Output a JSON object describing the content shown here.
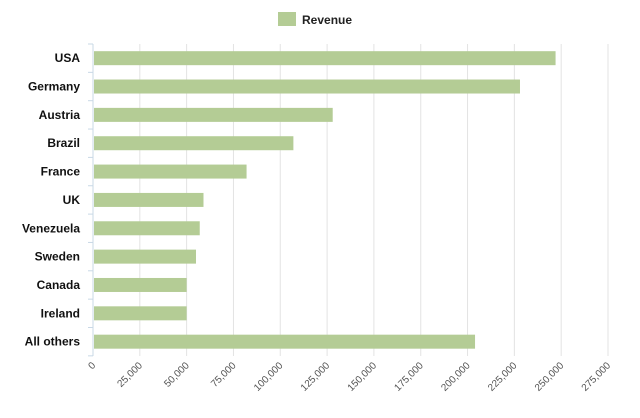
{
  "chart_data": {
    "type": "bar",
    "orientation": "horizontal",
    "legend": {
      "position": "top-center"
    },
    "series": [
      {
        "name": "Revenue",
        "color": "#b4cc95",
        "values": [
          247000,
          228000,
          128000,
          107000,
          82000,
          59000,
          57000,
          55000,
          50000,
          50000,
          204000
        ]
      }
    ],
    "categories": [
      "USA",
      "Germany",
      "Austria",
      "Brazil",
      "France",
      "UK",
      "Venezuela",
      "Sweden",
      "Canada",
      "Ireland",
      "All others"
    ],
    "xlim": [
      0,
      275000
    ],
    "x_ticks": [
      "0",
      "25,000",
      "50,000",
      "75,000",
      "100,000",
      "125,000",
      "150,000",
      "175,000",
      "200,000",
      "225,000",
      "250,000",
      "275,000"
    ],
    "x_tick_values": [
      0,
      25000,
      50000,
      75000,
      100000,
      125000,
      150000,
      175000,
      200000,
      225000,
      250000,
      275000
    ],
    "grid": true
  }
}
